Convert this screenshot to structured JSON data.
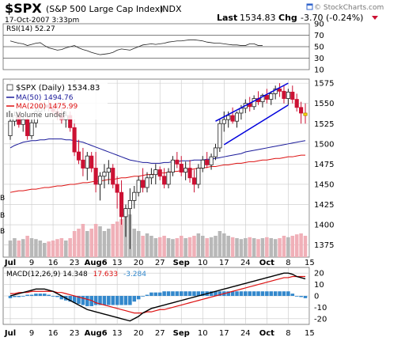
{
  "header": {
    "symbol": "$SPX",
    "name": "(S&P 500 Large Cap Index)",
    "exchange": "INDX",
    "date": "17-Oct-2007 3:33pm",
    "last_label": "Last",
    "last_value": "1534.83",
    "chg_label": "Chg",
    "chg_value": "-3.70 (-0.24%)",
    "watermark": "© StockCharts.com"
  },
  "colors": {
    "up": "#1e1e1e",
    "down": "#cc1133",
    "ma50": "#1a1a9a",
    "ma200": "#dd1111",
    "volume_up": "#b8b8b8",
    "volume_down": "#f0b0b8",
    "channel": "#0000dd",
    "highlight": "#ffdd00",
    "macd_line": "#000000",
    "signal_line": "#dd1111",
    "histogram": "#3388cc",
    "grid": "#c8c8c8"
  },
  "icon_names": [
    "window-icon"
  ],
  "chart_data": [
    {
      "type": "line",
      "indicator": "RSI",
      "legend": "RSI(14) 52.27",
      "ylim": [
        10,
        90
      ],
      "y_ticks": [
        "90",
        "70",
        "50",
        "30",
        "10"
      ],
      "reference_levels": [
        70,
        50,
        30
      ],
      "values": [
        60,
        58,
        56,
        55,
        52,
        54,
        56,
        57,
        52,
        48,
        46,
        44,
        45,
        48,
        50,
        52,
        48,
        45,
        43,
        40,
        38,
        36,
        37,
        38,
        40,
        44,
        46,
        45,
        44,
        47,
        50,
        53,
        54,
        55,
        54,
        55,
        56,
        58,
        59,
        60,
        60,
        61,
        62,
        62,
        61,
        60,
        58,
        57,
        56,
        56,
        55,
        54,
        53,
        53,
        52,
        52,
        55,
        55,
        52,
        52
      ]
    },
    {
      "type": "candlestick",
      "title": "$SPX (Daily) 1534.83",
      "legend": [
        {
          "label": "MA(50) 1494.76",
          "color": "#1a1a9a"
        },
        {
          "label": "MA(200) 1475.99",
          "color": "#dd1111"
        },
        {
          "label": "Volume undef",
          "color": "#999999"
        }
      ],
      "ylim": [
        1360,
        1580
      ],
      "y_ticks": [
        "1575",
        "1550",
        "1525",
        "1500",
        "1475",
        "1450",
        "1425",
        "1400",
        "1375"
      ],
      "x_ticks": [
        "Jul",
        "9",
        "16",
        "23",
        "Aug6",
        "13",
        "20",
        "27",
        "Sep",
        "10",
        "17",
        "24",
        "Oct",
        "8",
        "15"
      ],
      "tick_index": [
        0,
        5,
        10,
        15,
        20,
        25,
        30,
        35,
        40,
        45,
        50,
        55,
        60,
        65,
        70
      ],
      "volume_axis_labels": [
        "B",
        "B",
        "B"
      ],
      "candles": [
        [
          1510,
          1532,
          1505,
          1528
        ],
        [
          1528,
          1540,
          1522,
          1535
        ],
        [
          1535,
          1540,
          1520,
          1524
        ],
        [
          1524,
          1535,
          1515,
          1530
        ],
        [
          1530,
          1535,
          1505,
          1510
        ],
        [
          1510,
          1530,
          1506,
          1526
        ],
        [
          1526,
          1545,
          1520,
          1540
        ],
        [
          1540,
          1550,
          1532,
          1545
        ],
        [
          1545,
          1552,
          1540,
          1548
        ],
        [
          1548,
          1555,
          1540,
          1545
        ],
        [
          1545,
          1550,
          1535,
          1540
        ],
        [
          1540,
          1550,
          1530,
          1535
        ],
        [
          1535,
          1545,
          1525,
          1530
        ],
        [
          1530,
          1540,
          1520,
          1535
        ],
        [
          1535,
          1540,
          1515,
          1520
        ],
        [
          1520,
          1525,
          1485,
          1490
        ],
        [
          1490,
          1505,
          1475,
          1480
        ],
        [
          1480,
          1495,
          1460,
          1470
        ],
        [
          1470,
          1490,
          1455,
          1485
        ],
        [
          1485,
          1490,
          1465,
          1470
        ],
        [
          1470,
          1490,
          1440,
          1450
        ],
        [
          1450,
          1465,
          1430,
          1460
        ],
        [
          1460,
          1475,
          1445,
          1465
        ],
        [
          1465,
          1480,
          1450,
          1470
        ],
        [
          1470,
          1475,
          1445,
          1450
        ],
        [
          1450,
          1460,
          1420,
          1440
        ],
        [
          1440,
          1455,
          1400,
          1410
        ],
        [
          1410,
          1425,
          1385,
          1420
        ],
        [
          1420,
          1445,
          1370,
          1430
        ],
        [
          1430,
          1448,
          1420,
          1440
        ],
        [
          1440,
          1460,
          1435,
          1455
        ],
        [
          1455,
          1470,
          1440,
          1446
        ],
        [
          1446,
          1465,
          1440,
          1458
        ],
        [
          1458,
          1470,
          1450,
          1462
        ],
        [
          1462,
          1475,
          1450,
          1468
        ],
        [
          1468,
          1472,
          1455,
          1460
        ],
        [
          1460,
          1470,
          1445,
          1450
        ],
        [
          1450,
          1470,
          1445,
          1465
        ],
        [
          1465,
          1485,
          1460,
          1480
        ],
        [
          1480,
          1490,
          1470,
          1475
        ],
        [
          1475,
          1485,
          1460,
          1465
        ],
        [
          1465,
          1478,
          1455,
          1470
        ],
        [
          1470,
          1480,
          1452,
          1458
        ],
        [
          1458,
          1468,
          1440,
          1450
        ],
        [
          1450,
          1475,
          1445,
          1470
        ],
        [
          1470,
          1485,
          1465,
          1480
        ],
        [
          1480,
          1490,
          1470,
          1474
        ],
        [
          1474,
          1488,
          1468,
          1484
        ],
        [
          1484,
          1500,
          1480,
          1495
        ],
        [
          1495,
          1530,
          1490,
          1525
        ],
        [
          1525,
          1540,
          1515,
          1530
        ],
        [
          1530,
          1540,
          1520,
          1535
        ],
        [
          1535,
          1545,
          1525,
          1528
        ],
        [
          1528,
          1540,
          1520,
          1538
        ],
        [
          1538,
          1548,
          1530,
          1544
        ],
        [
          1544,
          1555,
          1538,
          1550
        ],
        [
          1550,
          1558,
          1540,
          1546
        ],
        [
          1546,
          1560,
          1542,
          1556
        ],
        [
          1556,
          1565,
          1548,
          1552
        ],
        [
          1552,
          1562,
          1545,
          1560
        ],
        [
          1560,
          1568,
          1550,
          1555
        ],
        [
          1555,
          1565,
          1548,
          1562
        ],
        [
          1562,
          1572,
          1555,
          1568
        ],
        [
          1568,
          1575,
          1558,
          1565
        ],
        [
          1565,
          1572,
          1550,
          1556
        ],
        [
          1556,
          1568,
          1548,
          1564
        ],
        [
          1564,
          1572,
          1550,
          1555
        ],
        [
          1555,
          1562,
          1540,
          1545
        ],
        [
          1545,
          1552,
          1525,
          1538
        ],
        [
          1538,
          1550,
          1525,
          1535
        ]
      ],
      "ma50": [
        1495,
        1498,
        1500,
        1502,
        1503,
        1504,
        1504,
        1505,
        1505,
        1506,
        1506,
        1506,
        1506,
        1505,
        1505,
        1504,
        1503,
        1502,
        1500,
        1498,
        1496,
        1494,
        1492,
        1490,
        1488,
        1486,
        1484,
        1482,
        1480,
        1479,
        1478,
        1477,
        1477,
        1476,
        1476,
        1476,
        1477,
        1477,
        1478,
        1478,
        1479,
        1479,
        1479,
        1480,
        1480,
        1480,
        1481,
        1481,
        1482,
        1483,
        1484,
        1485,
        1486,
        1487,
        1488,
        1490,
        1491,
        1492,
        1493,
        1494,
        1495,
        1496,
        1497,
        1498,
        1499,
        1500,
        1501,
        1502,
        1503,
        1504
      ],
      "ma200": [
        1440,
        1441,
        1442,
        1442,
        1443,
        1444,
        1444,
        1445,
        1446,
        1446,
        1447,
        1448,
        1448,
        1449,
        1450,
        1450,
        1451,
        1452,
        1452,
        1453,
        1454,
        1454,
        1455,
        1456,
        1456,
        1457,
        1458,
        1458,
        1459,
        1460,
        1460,
        1461,
        1462,
        1462,
        1463,
        1464,
        1464,
        1465,
        1466,
        1466,
        1467,
        1468,
        1468,
        1469,
        1470,
        1470,
        1471,
        1472,
        1472,
        1473,
        1474,
        1474,
        1475,
        1476,
        1476,
        1477,
        1478,
        1478,
        1479,
        1480,
        1480,
        1481,
        1482,
        1482,
        1483,
        1484,
        1484,
        1485,
        1486,
        1486
      ],
      "volume": [
        0.35,
        0.4,
        0.35,
        0.38,
        0.45,
        0.4,
        0.38,
        0.35,
        0.3,
        0.33,
        0.35,
        0.38,
        0.4,
        0.35,
        0.4,
        0.55,
        0.6,
        0.7,
        0.55,
        0.6,
        0.7,
        0.65,
        0.55,
        0.6,
        0.7,
        0.75,
        0.8,
        0.85,
        0.9,
        0.6,
        0.55,
        0.45,
        0.5,
        0.45,
        0.4,
        0.42,
        0.45,
        0.4,
        0.38,
        0.4,
        0.45,
        0.4,
        0.42,
        0.45,
        0.5,
        0.45,
        0.4,
        0.42,
        0.45,
        0.55,
        0.5,
        0.45,
        0.42,
        0.4,
        0.38,
        0.4,
        0.42,
        0.4,
        0.38,
        0.4,
        0.42,
        0.4,
        0.38,
        0.4,
        0.45,
        0.42,
        0.45,
        0.48,
        0.5,
        0.45
      ],
      "channel_upper": {
        "from": [
          48,
          1528
        ],
        "to": [
          65,
          1575
        ]
      },
      "channel_lower": {
        "from": [
          50,
          1499
        ],
        "to": [
          65,
          1548
        ]
      }
    },
    {
      "type": "line",
      "indicator": "MACD",
      "legend": {
        "macd": "MACD(12,26,9) 14.348",
        "signal": "17.633",
        "histogram": "-3.284"
      },
      "ylim": [
        -25,
        25
      ],
      "y_ticks": [
        "20",
        "10",
        "0",
        "-10",
        "-20"
      ],
      "x_ticks": [
        "Jul",
        "9",
        "16",
        "23",
        "Aug6",
        "13",
        "20",
        "27",
        "Sep",
        "10",
        "17",
        "24",
        "Oct",
        "8",
        "15"
      ],
      "macd": [
        0,
        1,
        2,
        3,
        4,
        5,
        6,
        6,
        6,
        5,
        4,
        2,
        0,
        -2,
        -4,
        -6,
        -8,
        -10,
        -12,
        -13,
        -14,
        -15,
        -16,
        -17,
        -18,
        -19,
        -20,
        -21,
        -22,
        -20,
        -18,
        -15,
        -13,
        -11,
        -10,
        -9,
        -8,
        -7,
        -6,
        -5,
        -4,
        -3,
        -2,
        -1,
        0,
        1,
        2,
        3,
        4,
        5,
        6,
        7,
        8,
        9,
        10,
        11,
        12,
        13,
        14,
        15,
        16,
        17,
        18,
        19,
        20,
        20,
        19,
        17,
        16,
        15
      ],
      "signal": [
        2,
        2,
        3,
        3,
        3,
        4,
        4,
        4,
        4,
        4,
        4,
        3,
        3,
        2,
        1,
        0,
        -1,
        -2,
        -3,
        -4,
        -6,
        -7,
        -8,
        -9,
        -10,
        -11,
        -12,
        -13,
        -14,
        -15,
        -15,
        -15,
        -14,
        -14,
        -13,
        -12,
        -12,
        -11,
        -10,
        -9,
        -8,
        -7,
        -6,
        -5,
        -4,
        -3,
        -2,
        -1,
        0,
        1,
        2,
        3,
        4,
        5,
        6,
        7,
        8,
        9,
        10,
        11,
        12,
        13,
        14,
        15,
        16,
        16,
        17,
        17,
        17,
        17
      ],
      "histogram": [
        -2,
        -1,
        -1,
        0,
        1,
        1,
        2,
        2,
        2,
        1,
        0,
        -1,
        -3,
        -4,
        -5,
        -6,
        -7,
        -8,
        -9,
        -9,
        -8,
        -8,
        -8,
        -8,
        -8,
        -8,
        -8,
        -8,
        -8,
        -5,
        -3,
        0,
        1,
        3,
        3,
        3,
        4,
        4,
        4,
        4,
        4,
        4,
        4,
        4,
        4,
        4,
        4,
        4,
        4,
        4,
        4,
        4,
        4,
        4,
        4,
        4,
        4,
        4,
        4,
        4,
        4,
        4,
        4,
        4,
        4,
        4,
        2,
        0,
        -1,
        -2
      ]
    }
  ]
}
